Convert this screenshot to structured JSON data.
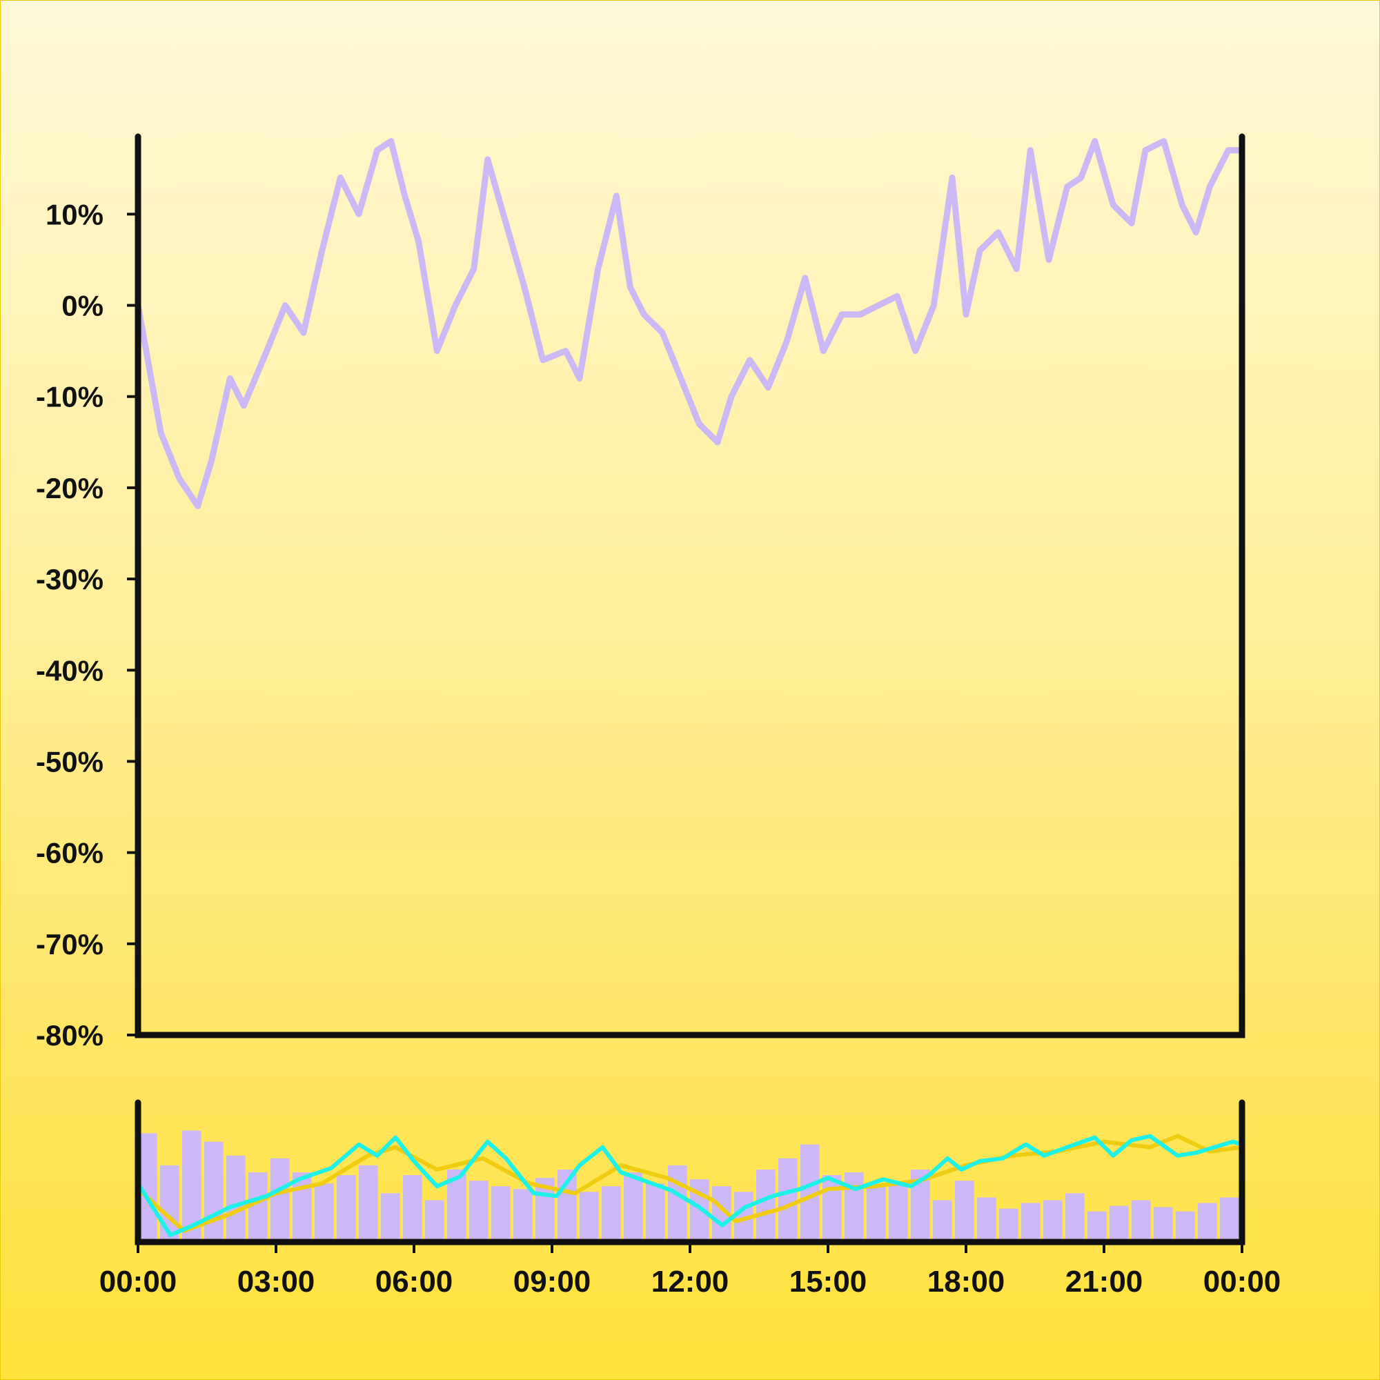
{
  "colors": {
    "price": "#CDB8F6",
    "volume": "#CDB8F6",
    "fast_ma": "#1EF2E8",
    "slow_ma": "#F0CC10",
    "axis": "#111111"
  },
  "chart_data": [
    {
      "type": "line",
      "name": "main-price-panel",
      "title": "",
      "xlabel": "",
      "ylabel": "",
      "ylim": [
        -80,
        18.5
      ],
      "y_ticks": [
        10,
        0,
        -10,
        -20,
        -30,
        -40,
        -50,
        -60,
        -70,
        -80
      ],
      "y_tick_labels": [
        "10%",
        "0%",
        "-10%",
        "-20%",
        "-30%",
        "-40%",
        "-50%",
        "-60%",
        "-70%",
        "-80%"
      ],
      "x_range_hours": [
        0,
        24
      ],
      "grid": false,
      "series": [
        {
          "x_hours": [
            0,
            0.5,
            0.9,
            1.3,
            1.6,
            2.0,
            2.3,
            2.8,
            3.2,
            3.6,
            4.0,
            4.4,
            4.8,
            5.2,
            5.5,
            5.8,
            6.1,
            6.5,
            6.9,
            7.3,
            7.6,
            8.0,
            8.4,
            8.8,
            9.3,
            9.6,
            10.0,
            10.4,
            10.7,
            11.0,
            11.4,
            11.8,
            12.2,
            12.6,
            12.9,
            13.3,
            13.7,
            14.1,
            14.5,
            14.9,
            15.3,
            15.7,
            16.1,
            16.5,
            16.9,
            17.3,
            17.7,
            18.0,
            18.3,
            18.7,
            19.1,
            19.4,
            19.8,
            20.2,
            20.5,
            20.8,
            21.2,
            21.6,
            21.9,
            22.3,
            22.7,
            23.0,
            23.3,
            23.7,
            24.0
          ],
          "y": [
            0,
            -14,
            -19,
            -22,
            -17,
            -8,
            -11,
            -5,
            0,
            -3,
            6,
            14,
            10,
            17,
            18,
            12,
            7,
            -5,
            0,
            4,
            16,
            9,
            2,
            -6,
            -5,
            -8,
            4,
            12,
            2,
            -1,
            -3,
            -8,
            -13,
            -15,
            -10,
            -6,
            -9,
            -4,
            3,
            -5,
            -1,
            -1,
            0,
            1,
            -5,
            0,
            14,
            -1,
            6,
            8,
            4,
            17,
            5,
            13,
            14,
            18,
            11,
            9,
            17,
            18,
            11,
            8,
            13,
            17,
            17
          ]
        }
      ]
    },
    {
      "type": "bar",
      "name": "volume-indicator-panel",
      "title": "",
      "x_tick_labels": [
        "00:00",
        "03:00",
        "06:00",
        "09:00",
        "12:00",
        "15:00",
        "18:00",
        "21:00",
        "00:00"
      ],
      "bar_scale": [
        0,
        1
      ],
      "bar_heights_normalized": [
        0.78,
        0.55,
        0.8,
        0.72,
        0.62,
        0.5,
        0.6,
        0.5,
        0.42,
        0.48,
        0.55,
        0.35,
        0.48,
        0.3,
        0.52,
        0.44,
        0.4,
        0.38,
        0.46,
        0.52,
        0.36,
        0.4,
        0.5,
        0.42,
        0.55,
        0.45,
        0.4,
        0.36,
        0.52,
        0.6,
        0.7,
        0.48,
        0.5,
        0.4,
        0.42,
        0.52,
        0.3,
        0.44,
        0.32,
        0.24,
        0.28,
        0.3,
        0.35,
        0.22,
        0.26,
        0.3,
        0.25,
        0.22,
        0.28,
        0.32
      ],
      "series": [
        {
          "x_hours": [
            0,
            0.7,
            1.2,
            2.0,
            2.8,
            3.5,
            4.2,
            4.8,
            5.2,
            5.6,
            6.0,
            6.5,
            7.0,
            7.6,
            8.0,
            8.6,
            9.1,
            9.6,
            10.1,
            10.5,
            11.0,
            11.6,
            12.2,
            12.7,
            13.2,
            13.8,
            14.4,
            15.0,
            15.6,
            16.2,
            16.8,
            17.2,
            17.6,
            17.9,
            18.3,
            18.8,
            19.3,
            19.7,
            20.2,
            20.8,
            21.2,
            21.6,
            22.0,
            22.6,
            23.0,
            23.4,
            23.8,
            24.0
          ],
          "values_normalized": [
            0.42,
            0.05,
            0.12,
            0.25,
            0.33,
            0.45,
            0.53,
            0.7,
            0.62,
            0.75,
            0.58,
            0.4,
            0.47,
            0.72,
            0.6,
            0.35,
            0.33,
            0.55,
            0.68,
            0.5,
            0.44,
            0.37,
            0.25,
            0.12,
            0.25,
            0.33,
            0.38,
            0.46,
            0.38,
            0.45,
            0.4,
            0.48,
            0.6,
            0.52,
            0.58,
            0.6,
            0.7,
            0.62,
            0.68,
            0.75,
            0.62,
            0.73,
            0.76,
            0.62,
            0.64,
            0.68,
            0.72,
            0.7
          ]
        },
        {
          "x_hours": [
            0,
            1.0,
            2.0,
            3.0,
            4.0,
            5.0,
            5.6,
            6.5,
            7.5,
            8.5,
            9.5,
            10.5,
            11.5,
            12.5,
            13.0,
            14.0,
            15.0,
            16.0,
            17.0,
            18.0,
            19.0,
            20.0,
            21.0,
            22.0,
            22.6,
            23.3,
            24.0
          ],
          "values_normalized": [
            0.38,
            0.08,
            0.2,
            0.35,
            0.42,
            0.62,
            0.68,
            0.52,
            0.6,
            0.42,
            0.35,
            0.55,
            0.46,
            0.3,
            0.15,
            0.24,
            0.38,
            0.4,
            0.44,
            0.55,
            0.62,
            0.65,
            0.72,
            0.68,
            0.76,
            0.65,
            0.68
          ]
        }
      ]
    }
  ]
}
